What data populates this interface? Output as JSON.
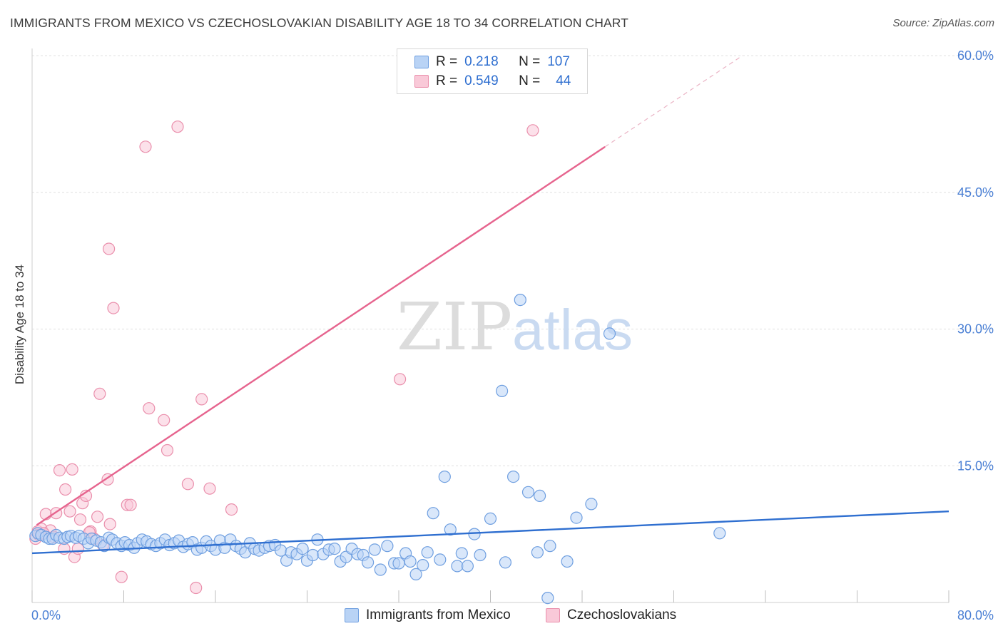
{
  "title": "IMMIGRANTS FROM MEXICO VS CZECHOSLOVAKIAN DISABILITY AGE 18 TO 34 CORRELATION CHART",
  "source": "Source: ZipAtlas.com",
  "watermark": {
    "zip": "ZIP",
    "atlas": "atlas"
  },
  "colors": {
    "blue_fill": "#b9d3f5",
    "blue_stroke": "#6f9fe0",
    "blue_line": "#2f6fd0",
    "pink_fill": "#f9c9d8",
    "pink_stroke": "#ea8fac",
    "pink_line": "#e6648e",
    "tick_label": "#4a7fd4"
  },
  "legend": {
    "rows": [
      {
        "r_label": "R =",
        "r_value": "0.218",
        "n_label": "N =",
        "n_value": "107",
        "color": "blue"
      },
      {
        "r_label": "R =",
        "r_value": "0.549",
        "n_label": "N =",
        "n_value": "44",
        "color": "pink"
      }
    ]
  },
  "bottom_legend": [
    {
      "label": "Immigrants from Mexico",
      "color": "blue"
    },
    {
      "label": "Czechoslovakians",
      "color": "pink"
    }
  ],
  "chart_data": {
    "type": "scatter",
    "title": "IMMIGRANTS FROM MEXICO VS CZECHOSLOVAKIAN DISABILITY AGE 18 TO 34 CORRELATION CHART",
    "xlabel": "",
    "ylabel": "Disability Age 18 to 34",
    "xlim": [
      0,
      80
    ],
    "ylim": [
      0,
      60
    ],
    "x_tick_labels": [
      "0.0%",
      "80.0%"
    ],
    "y_tick_labels": [
      "15.0%",
      "30.0%",
      "45.0%",
      "60.0%"
    ],
    "y_ticks": [
      15,
      30,
      45,
      60
    ],
    "grid": true,
    "legend_position": "top-center",
    "series": [
      {
        "name": "Immigrants from Mexico",
        "color": "blue",
        "trend": {
          "x": [
            0,
            80
          ],
          "y": [
            5.4,
            10.0
          ],
          "dashed_extension": false
        },
        "points": [
          [
            0.3,
            7.3
          ],
          [
            0.5,
            7.6
          ],
          [
            0.8,
            7.4
          ],
          [
            1.2,
            7.2
          ],
          [
            1.5,
            7.0
          ],
          [
            1.8,
            7.0
          ],
          [
            2.1,
            7.4
          ],
          [
            2.4,
            7.1
          ],
          [
            2.8,
            7.0
          ],
          [
            3.1,
            7.2
          ],
          [
            3.4,
            7.3
          ],
          [
            3.8,
            7.1
          ],
          [
            4.1,
            7.3
          ],
          [
            4.5,
            7.0
          ],
          [
            4.9,
            6.5
          ],
          [
            5.2,
            7.0
          ],
          [
            5.6,
            6.8
          ],
          [
            6.0,
            6.6
          ],
          [
            6.3,
            6.2
          ],
          [
            6.7,
            7.1
          ],
          [
            7.0,
            6.9
          ],
          [
            7.4,
            6.5
          ],
          [
            7.8,
            6.2
          ],
          [
            8.1,
            6.6
          ],
          [
            8.5,
            6.3
          ],
          [
            8.9,
            6.0
          ],
          [
            9.2,
            6.5
          ],
          [
            9.6,
            6.9
          ],
          [
            10.0,
            6.7
          ],
          [
            10.4,
            6.4
          ],
          [
            10.8,
            6.2
          ],
          [
            11.2,
            6.5
          ],
          [
            11.6,
            6.9
          ],
          [
            12.0,
            6.3
          ],
          [
            12.4,
            6.5
          ],
          [
            12.8,
            6.8
          ],
          [
            13.2,
            6.1
          ],
          [
            13.6,
            6.4
          ],
          [
            14.0,
            6.6
          ],
          [
            14.4,
            5.8
          ],
          [
            14.8,
            6.0
          ],
          [
            15.2,
            6.7
          ],
          [
            15.6,
            6.2
          ],
          [
            16.0,
            5.8
          ],
          [
            16.4,
            6.8
          ],
          [
            16.8,
            6.0
          ],
          [
            17.3,
            6.9
          ],
          [
            17.8,
            6.2
          ],
          [
            18.2,
            5.9
          ],
          [
            18.6,
            5.5
          ],
          [
            19.0,
            6.5
          ],
          [
            19.4,
            5.9
          ],
          [
            19.8,
            5.7
          ],
          [
            20.3,
            6.0
          ],
          [
            20.7,
            6.2
          ],
          [
            21.2,
            6.3
          ],
          [
            21.7,
            5.7
          ],
          [
            22.2,
            4.6
          ],
          [
            22.6,
            5.5
          ],
          [
            23.1,
            5.3
          ],
          [
            23.6,
            5.9
          ],
          [
            24.0,
            4.6
          ],
          [
            24.5,
            5.2
          ],
          [
            24.9,
            6.9
          ],
          [
            25.4,
            5.3
          ],
          [
            25.9,
            5.8
          ],
          [
            26.4,
            5.9
          ],
          [
            26.9,
            4.5
          ],
          [
            27.4,
            5.0
          ],
          [
            27.9,
            5.9
          ],
          [
            28.4,
            5.3
          ],
          [
            28.9,
            5.2
          ],
          [
            29.3,
            4.4
          ],
          [
            29.9,
            5.8
          ],
          [
            30.4,
            3.6
          ],
          [
            31.0,
            6.2
          ],
          [
            31.6,
            4.3
          ],
          [
            32.0,
            4.3
          ],
          [
            32.6,
            5.4
          ],
          [
            33.0,
            4.5
          ],
          [
            33.5,
            3.1
          ],
          [
            34.1,
            4.1
          ],
          [
            34.5,
            5.5
          ],
          [
            35.0,
            9.8
          ],
          [
            35.6,
            4.7
          ],
          [
            36.0,
            13.8
          ],
          [
            36.5,
            8.0
          ],
          [
            37.1,
            4.0
          ],
          [
            37.5,
            5.4
          ],
          [
            38.0,
            4.0
          ],
          [
            38.6,
            7.5
          ],
          [
            39.1,
            5.2
          ],
          [
            40.0,
            9.2
          ],
          [
            41.0,
            23.2
          ],
          [
            41.3,
            4.4
          ],
          [
            42.0,
            13.8
          ],
          [
            42.6,
            33.2
          ],
          [
            43.3,
            12.1
          ],
          [
            44.1,
            5.5
          ],
          [
            44.3,
            11.7
          ],
          [
            45.2,
            6.2
          ],
          [
            46.7,
            4.5
          ],
          [
            47.5,
            9.3
          ],
          [
            48.8,
            10.8
          ],
          [
            50.4,
            29.5
          ],
          [
            60.0,
            7.6
          ],
          [
            45.0,
            0.5
          ]
        ]
      },
      {
        "name": "Czechoslovakians",
        "color": "pink",
        "trend": {
          "x": [
            0.4,
            50
          ],
          "y": [
            8.5,
            50.0
          ],
          "dashed_extension": {
            "x": [
              50,
              62
            ],
            "y": [
              50.0,
              60.0
            ]
          }
        },
        "points": [
          [
            0.3,
            7.0
          ],
          [
            0.5,
            7.8
          ],
          [
            0.8,
            8.1
          ],
          [
            1.2,
            9.7
          ],
          [
            1.6,
            7.9
          ],
          [
            2.1,
            9.8
          ],
          [
            2.4,
            14.5
          ],
          [
            2.8,
            5.9
          ],
          [
            2.9,
            12.4
          ],
          [
            3.3,
            10.0
          ],
          [
            3.5,
            14.6
          ],
          [
            3.7,
            5.0
          ],
          [
            4.0,
            5.9
          ],
          [
            4.2,
            9.1
          ],
          [
            4.4,
            10.9
          ],
          [
            4.7,
            11.7
          ],
          [
            5.1,
            7.8
          ],
          [
            5.4,
            7.0
          ],
          [
            5.7,
            9.4
          ],
          [
            5.9,
            22.9
          ],
          [
            6.2,
            6.3
          ],
          [
            6.6,
            13.5
          ],
          [
            6.8,
            8.6
          ],
          [
            6.7,
            38.8
          ],
          [
            7.1,
            32.3
          ],
          [
            7.8,
            2.8
          ],
          [
            8.3,
            10.7
          ],
          [
            8.6,
            10.7
          ],
          [
            9.9,
            50.0
          ],
          [
            10.2,
            21.3
          ],
          [
            11.5,
            20.0
          ],
          [
            11.8,
            16.7
          ],
          [
            12.7,
            52.2
          ],
          [
            13.6,
            13.0
          ],
          [
            14.3,
            1.6
          ],
          [
            14.8,
            22.3
          ],
          [
            15.5,
            12.5
          ],
          [
            17.4,
            10.2
          ],
          [
            32.1,
            24.5
          ],
          [
            43.7,
            51.8
          ],
          [
            0.6,
            7.4
          ],
          [
            1.0,
            7.6
          ],
          [
            1.9,
            7.2
          ],
          [
            5.0,
            7.7
          ]
        ]
      }
    ]
  }
}
